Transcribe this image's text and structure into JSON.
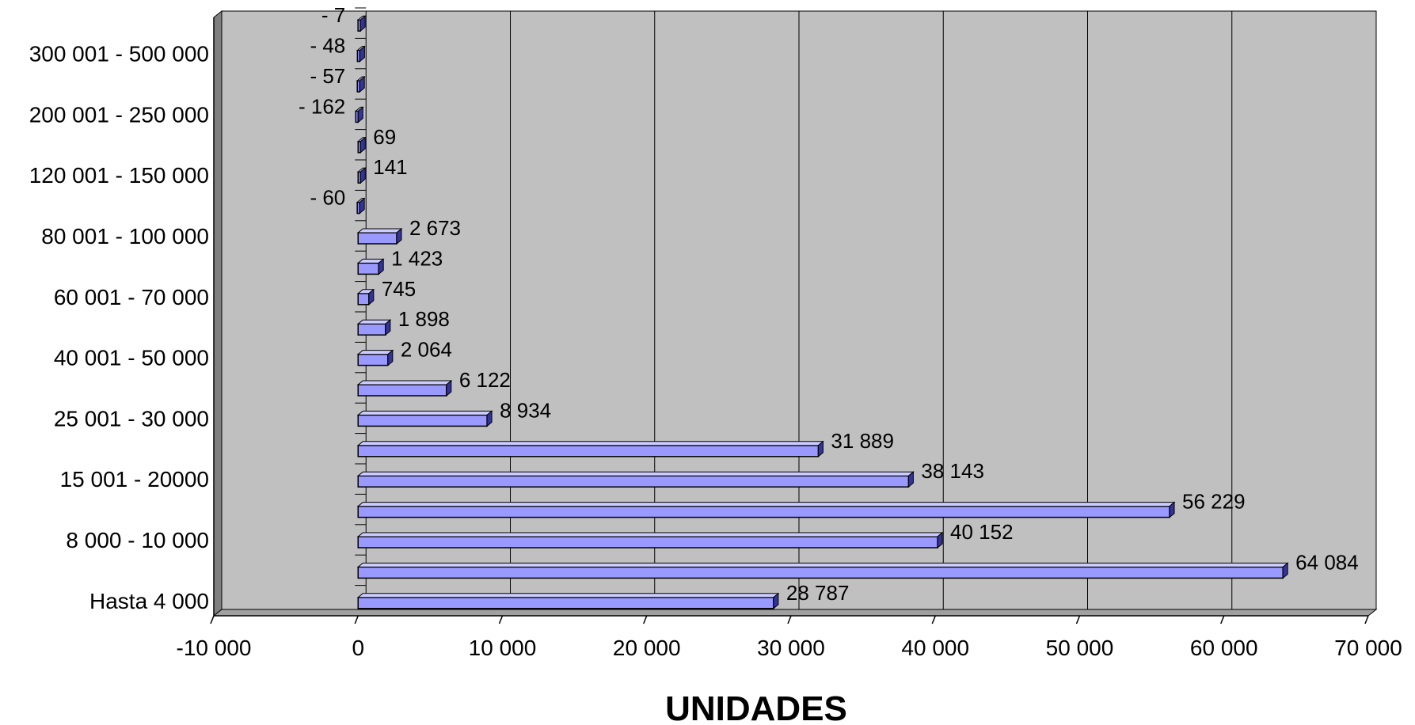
{
  "chart_data": {
    "type": "bar",
    "orientation": "horizontal",
    "rows": [
      {
        "label": "Hasta 4 000",
        "value": 28787,
        "value_label": "28 787"
      },
      {
        "label": "",
        "value": 64084,
        "value_label": "64 084"
      },
      {
        "label": "8 000 - 10 000",
        "value": 40152,
        "value_label": "40 152"
      },
      {
        "label": "",
        "value": 56229,
        "value_label": "56 229"
      },
      {
        "label": "15 001 - 20000",
        "value": 38143,
        "value_label": "38 143"
      },
      {
        "label": "",
        "value": 31889,
        "value_label": "31 889"
      },
      {
        "label": "25 001 - 30 000",
        "value": 8934,
        "value_label": "8 934"
      },
      {
        "label": "",
        "value": 6122,
        "value_label": "6 122"
      },
      {
        "label": "40 001 - 50 000",
        "value": 2064,
        "value_label": "2 064"
      },
      {
        "label": "",
        "value": 1898,
        "value_label": "1 898"
      },
      {
        "label": "60 001 - 70 000",
        "value": 745,
        "value_label": "745"
      },
      {
        "label": "",
        "value": 1423,
        "value_label": "1 423"
      },
      {
        "label": "80 001 - 100 000",
        "value": 2673,
        "value_label": "2 673"
      },
      {
        "label": "",
        "value": -60,
        "value_label": "- 60"
      },
      {
        "label": "120 001 - 150 000",
        "value": 141,
        "value_label": "141"
      },
      {
        "label": "",
        "value": 69,
        "value_label": "69"
      },
      {
        "label": "200 001 - 250 000",
        "value": -162,
        "value_label": "- 162"
      },
      {
        "label": "",
        "value": -57,
        "value_label": "- 57"
      },
      {
        "label": "300 001 - 500 000",
        "value": -48,
        "value_label": "- 48"
      },
      {
        "label": "",
        "value": -7,
        "value_label": "- 7"
      }
    ],
    "x_ticks": [
      {
        "value": -10000,
        "label": "-10 000"
      },
      {
        "value": 0,
        "label": "0"
      },
      {
        "value": 10000,
        "label": "10 000"
      },
      {
        "value": 20000,
        "label": "20 000"
      },
      {
        "value": 30000,
        "label": "30 000"
      },
      {
        "value": 40000,
        "label": "40 000"
      },
      {
        "value": 50000,
        "label": "50 000"
      },
      {
        "value": 60000,
        "label": "60 000"
      },
      {
        "value": 70000,
        "label": "70 000"
      }
    ],
    "xlim": [
      -10000,
      70000
    ],
    "xlabel": "UNIDADES",
    "ylabel": "",
    "title": "",
    "grid": "vertical",
    "colors": {
      "bar_front": "#9999ff",
      "bar_top": "#ccccff",
      "bar_side": "#333399",
      "bar_edge": "#000000",
      "plot_background": "#c0c0c0",
      "wall_side": "#808080",
      "floor": "#a0a0a0",
      "gridline": "#000000"
    }
  }
}
